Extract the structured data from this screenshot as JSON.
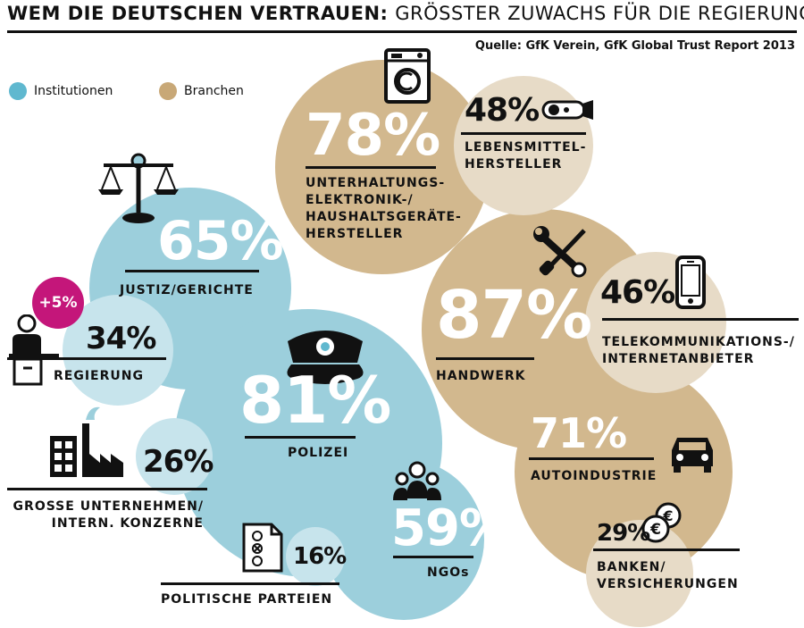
{
  "title": {
    "bold": "WEM DIE DEUTSCHEN VERTRAUEN:",
    "normal": "GRÖSSTER ZUWACHS FÜR DIE REGIERUNG"
  },
  "source": "Quelle: GfK Verein, GfK Global Trust Report 2013",
  "colors": {
    "institutionen": "#9ccfdc",
    "institutionen_light": "#c7e4ec",
    "branchen": "#d2b88e",
    "branchen_light": "#e7dbc7",
    "badge": "#c4167a"
  },
  "legend": [
    {
      "label": "Institutionen",
      "color": "#5fb8cf"
    },
    {
      "label": "Branchen",
      "color": "#c8a877"
    }
  ],
  "badge_text": "+5%",
  "chart_data": {
    "type": "bubble",
    "title": "WEM DIE DEUTSCHEN VERTRAUEN: GRÖSSTER ZUWACHS FÜR DIE REGIERUNG",
    "series": [
      {
        "name": "Institutionen",
        "items": [
          {
            "label": "JUSTIZ/GERICHTE",
            "value": 65,
            "pct_text": "65%"
          },
          {
            "label": "REGIERUNG",
            "value": 34,
            "pct_text": "34%",
            "change": "+5%"
          },
          {
            "label": "POLIZEI",
            "value": 81,
            "pct_text": "81%"
          },
          {
            "label": "GROSSE UNTERNEHMEN/\nINTERN. KONZERNE",
            "value": 26,
            "pct_text": "26%"
          },
          {
            "label": "POLITISCHE PARTEIEN",
            "value": 16,
            "pct_text": "16%"
          },
          {
            "label": "NGOs",
            "value": 59,
            "pct_text": "59%"
          }
        ]
      },
      {
        "name": "Branchen",
        "items": [
          {
            "label": "UNTERHALTUNGS-\nELEKTRONIK-/\nHAUSHALTSGERÄTE-\nHERSTELLER",
            "value": 78,
            "pct_text": "78%"
          },
          {
            "label": "LEBENSMITTEL-\nHERSTELLER",
            "value": 48,
            "pct_text": "48%"
          },
          {
            "label": "HANDWERK",
            "value": 87,
            "pct_text": "87%"
          },
          {
            "label": "TELEKOMMUNIKATIONS-/\nINTERNETANBIETER",
            "value": 46,
            "pct_text": "46%"
          },
          {
            "label": "AUTOINDUSTRIE",
            "value": 71,
            "pct_text": "71%"
          },
          {
            "label": "BANKEN/\nVERSICHERUNGEN",
            "value": 29,
            "pct_text": "29%"
          }
        ]
      }
    ]
  }
}
